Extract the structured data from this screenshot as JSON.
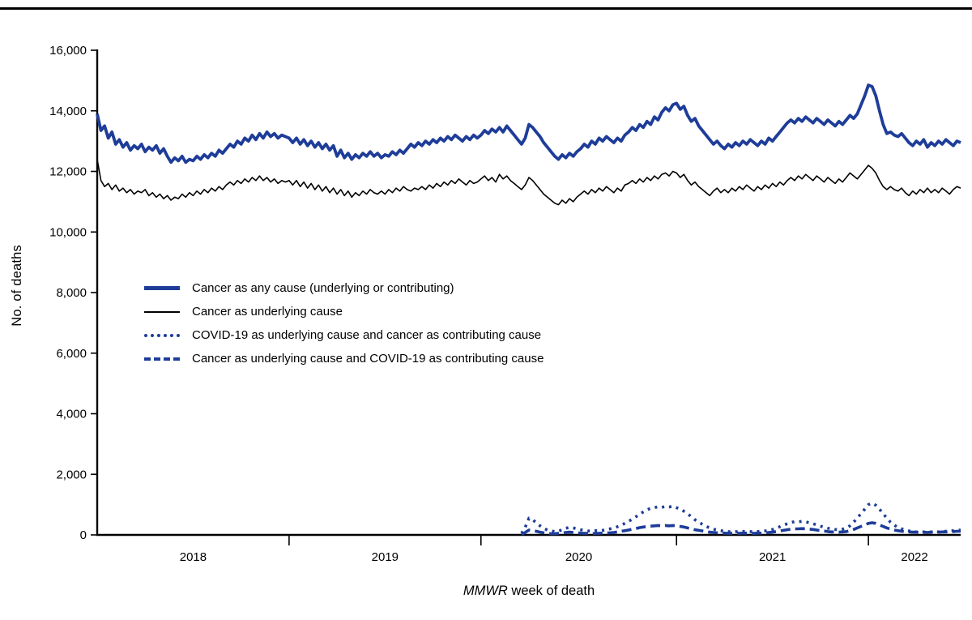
{
  "figure": {
    "ylabel": "No. of deaths",
    "xlabel_italic": "MMWR",
    "xlabel_rest": " week of death",
    "accent_blue": "#1e3d99",
    "axis_color": "#000000"
  },
  "chart_data": {
    "type": "line",
    "title": "",
    "xlabel": "MMWR week of death",
    "ylabel": "No. of deaths",
    "ylim": [
      0,
      16000
    ],
    "ytick_interval": 2000,
    "grid": false,
    "legend_position": "inside-left-middle",
    "x_unit": "MMWR week index (weekly data, 2018 week 1 through 2022 week 26)",
    "x_weeks_total": 235,
    "x_year_segments": [
      {
        "label": "2018",
        "start_week": 0,
        "end_week": 52
      },
      {
        "label": "2019",
        "start_week": 52,
        "end_week": 104
      },
      {
        "label": "2020",
        "start_week": 104,
        "end_week": 157
      },
      {
        "label": "2021",
        "start_week": 157,
        "end_week": 209
      },
      {
        "label": "2022",
        "start_week": 209,
        "end_week": 234
      }
    ],
    "series": [
      {
        "name": "Cancer as any cause (underlying or contributing)",
        "color": "#1e3d99",
        "style": "solid",
        "width": 3.8,
        "start_week": 0,
        "values": [
          13900,
          13350,
          13500,
          13100,
          13300,
          12900,
          13050,
          12800,
          12950,
          12700,
          12850,
          12750,
          12900,
          12650,
          12800,
          12700,
          12850,
          12600,
          12750,
          12500,
          12300,
          12450,
          12350,
          12500,
          12300,
          12400,
          12350,
          12500,
          12400,
          12550,
          12450,
          12600,
          12500,
          12700,
          12600,
          12750,
          12900,
          12800,
          13000,
          12900,
          13100,
          13000,
          13200,
          13050,
          13250,
          13100,
          13300,
          13150,
          13250,
          13100,
          13200,
          13150,
          13100,
          12950,
          13100,
          12900,
          13050,
          12850,
          13000,
          12800,
          12950,
          12750,
          12900,
          12700,
          12850,
          12500,
          12700,
          12450,
          12600,
          12400,
          12550,
          12450,
          12600,
          12500,
          12650,
          12500,
          12600,
          12450,
          12550,
          12500,
          12650,
          12550,
          12700,
          12600,
          12750,
          12900,
          12800,
          12950,
          12850,
          13000,
          12900,
          13050,
          12950,
          13100,
          13000,
          13150,
          13050,
          13200,
          13100,
          13000,
          13150,
          13050,
          13200,
          13100,
          13200,
          13350,
          13250,
          13400,
          13300,
          13450,
          13300,
          13500,
          13350,
          13200,
          13050,
          12900,
          13100,
          13550,
          13450,
          13300,
          13150,
          12950,
          12800,
          12650,
          12500,
          12400,
          12550,
          12450,
          12600,
          12500,
          12650,
          12750,
          12900,
          12800,
          13000,
          12900,
          13100,
          13000,
          13150,
          13050,
          12950,
          13100,
          13000,
          13200,
          13300,
          13450,
          13350,
          13550,
          13450,
          13650,
          13550,
          13800,
          13700,
          13950,
          14100,
          14000,
          14200,
          14250,
          14050,
          14150,
          13850,
          13650,
          13750,
          13500,
          13350,
          13200,
          13050,
          12900,
          13000,
          12850,
          12750,
          12900,
          12800,
          12950,
          12850,
          13000,
          12900,
          13050,
          12950,
          12850,
          13000,
          12900,
          13100,
          13000,
          13150,
          13300,
          13450,
          13600,
          13700,
          13600,
          13750,
          13650,
          13800,
          13700,
          13600,
          13750,
          13650,
          13550,
          13700,
          13600,
          13500,
          13650,
          13550,
          13700,
          13850,
          13750,
          13900,
          14200,
          14500,
          14850,
          14800,
          14500,
          14000,
          13550,
          13250,
          13300,
          13200,
          13150,
          13250,
          13100,
          12950,
          12850,
          13000,
          12900,
          13050,
          12800,
          12950,
          12850,
          13000,
          12900,
          13050,
          12950,
          12850,
          13000,
          12950
        ]
      },
      {
        "name": "Cancer as underlying cause",
        "color": "#000000",
        "style": "solid",
        "width": 1.6,
        "start_week": 0,
        "values": [
          12400,
          11700,
          11500,
          11600,
          11400,
          11550,
          11350,
          11450,
          11300,
          11400,
          11250,
          11350,
          11300,
          11400,
          11200,
          11300,
          11150,
          11250,
          11100,
          11200,
          11050,
          11150,
          11100,
          11250,
          11150,
          11300,
          11200,
          11350,
          11250,
          11400,
          11300,
          11450,
          11350,
          11500,
          11400,
          11550,
          11650,
          11550,
          11700,
          11600,
          11750,
          11650,
          11800,
          11700,
          11850,
          11700,
          11800,
          11650,
          11750,
          11600,
          11700,
          11650,
          11700,
          11550,
          11700,
          11500,
          11650,
          11450,
          11600,
          11400,
          11550,
          11350,
          11500,
          11300,
          11450,
          11250,
          11400,
          11200,
          11350,
          11150,
          11300,
          11200,
          11350,
          11250,
          11400,
          11300,
          11250,
          11350,
          11250,
          11400,
          11300,
          11450,
          11350,
          11500,
          11400,
          11350,
          11450,
          11400,
          11500,
          11400,
          11550,
          11450,
          11600,
          11500,
          11650,
          11550,
          11700,
          11600,
          11750,
          11650,
          11550,
          11700,
          11600,
          11650,
          11750,
          11850,
          11700,
          11800,
          11650,
          11900,
          11750,
          11850,
          11700,
          11600,
          11500,
          11400,
          11550,
          11800,
          11700,
          11550,
          11400,
          11250,
          11150,
          11050,
          10950,
          10900,
          11050,
          10950,
          11100,
          11000,
          11150,
          11250,
          11350,
          11250,
          11400,
          11300,
          11450,
          11350,
          11500,
          11400,
          11300,
          11450,
          11350,
          11550,
          11600,
          11700,
          11600,
          11750,
          11650,
          11800,
          11700,
          11850,
          11750,
          11900,
          11950,
          11850,
          12000,
          11950,
          11800,
          11900,
          11700,
          11550,
          11650,
          11500,
          11400,
          11300,
          11200,
          11350,
          11450,
          11300,
          11400,
          11300,
          11450,
          11350,
          11500,
          11400,
          11550,
          11450,
          11350,
          11500,
          11400,
          11550,
          11450,
          11600,
          11500,
          11650,
          11550,
          11700,
          11800,
          11700,
          11850,
          11750,
          11900,
          11800,
          11700,
          11850,
          11750,
          11650,
          11800,
          11700,
          11600,
          11750,
          11650,
          11800,
          11950,
          11850,
          11750,
          11900,
          12050,
          12200,
          12100,
          11950,
          11700,
          11500,
          11400,
          11500,
          11400,
          11350,
          11450,
          11300,
          11200,
          11350,
          11250,
          11400,
          11300,
          11450,
          11300,
          11400,
          11300,
          11450,
          11350,
          11250,
          11400,
          11500,
          11450
        ]
      },
      {
        "name": "COVID-19 as underlying cause and cancer as contributing cause",
        "color": "#1e3d99",
        "style": "dotted",
        "width": 3.6,
        "start_week": 115,
        "values": [
          50,
          250,
          550,
          500,
          400,
          300,
          220,
          160,
          130,
          110,
          130,
          160,
          220,
          250,
          230,
          200,
          170,
          150,
          130,
          120,
          140,
          130,
          150,
          170,
          200,
          230,
          270,
          320,
          380,
          450,
          520,
          600,
          680,
          760,
          830,
          880,
          900,
          930,
          910,
          940,
          920,
          950,
          900,
          850,
          780,
          700,
          600,
          500,
          420,
          350,
          280,
          230,
          190,
          160,
          140,
          120,
          110,
          100,
          110,
          100,
          110,
          120,
          110,
          100,
          110,
          120,
          130,
          150,
          180,
          220,
          270,
          320,
          370,
          410,
          440,
          430,
          450,
          430,
          400,
          370,
          330,
          290,
          250,
          220,
          200,
          180,
          170,
          190,
          230,
          300,
          420,
          560,
          700,
          850,
          1000,
          1050,
          980,
          850,
          700,
          550,
          420,
          320,
          250,
          200,
          160,
          130,
          110,
          100,
          90,
          100,
          90,
          100,
          110,
          100,
          110,
          120,
          130,
          140,
          150,
          160
        ]
      },
      {
        "name": "Cancer as underlying cause and COVID-19 as contributing cause",
        "color": "#1e3d99",
        "style": "dashed",
        "width": 3.6,
        "start_week": 115,
        "values": [
          20,
          80,
          160,
          150,
          120,
          90,
          70,
          50,
          40,
          40,
          50,
          60,
          80,
          90,
          80,
          70,
          60,
          50,
          50,
          40,
          50,
          50,
          60,
          60,
          70,
          80,
          100,
          120,
          140,
          160,
          190,
          210,
          240,
          260,
          280,
          290,
          300,
          310,
          300,
          310,
          300,
          310,
          300,
          280,
          260,
          230,
          200,
          170,
          150,
          130,
          110,
          90,
          80,
          70,
          60,
          60,
          50,
          50,
          60,
          50,
          60,
          60,
          50,
          50,
          60,
          60,
          70,
          80,
          90,
          110,
          130,
          150,
          170,
          190,
          200,
          200,
          210,
          200,
          190,
          180,
          160,
          140,
          130,
          110,
          100,
          100,
          90,
          100,
          110,
          140,
          180,
          230,
          280,
          330,
          380,
          400,
          380,
          330,
          280,
          230,
          190,
          160,
          140,
          120,
          110,
          100,
          90,
          90,
          80,
          90,
          80,
          90,
          90,
          90,
          100,
          100,
          110,
          110,
          120,
          120
        ]
      }
    ]
  }
}
